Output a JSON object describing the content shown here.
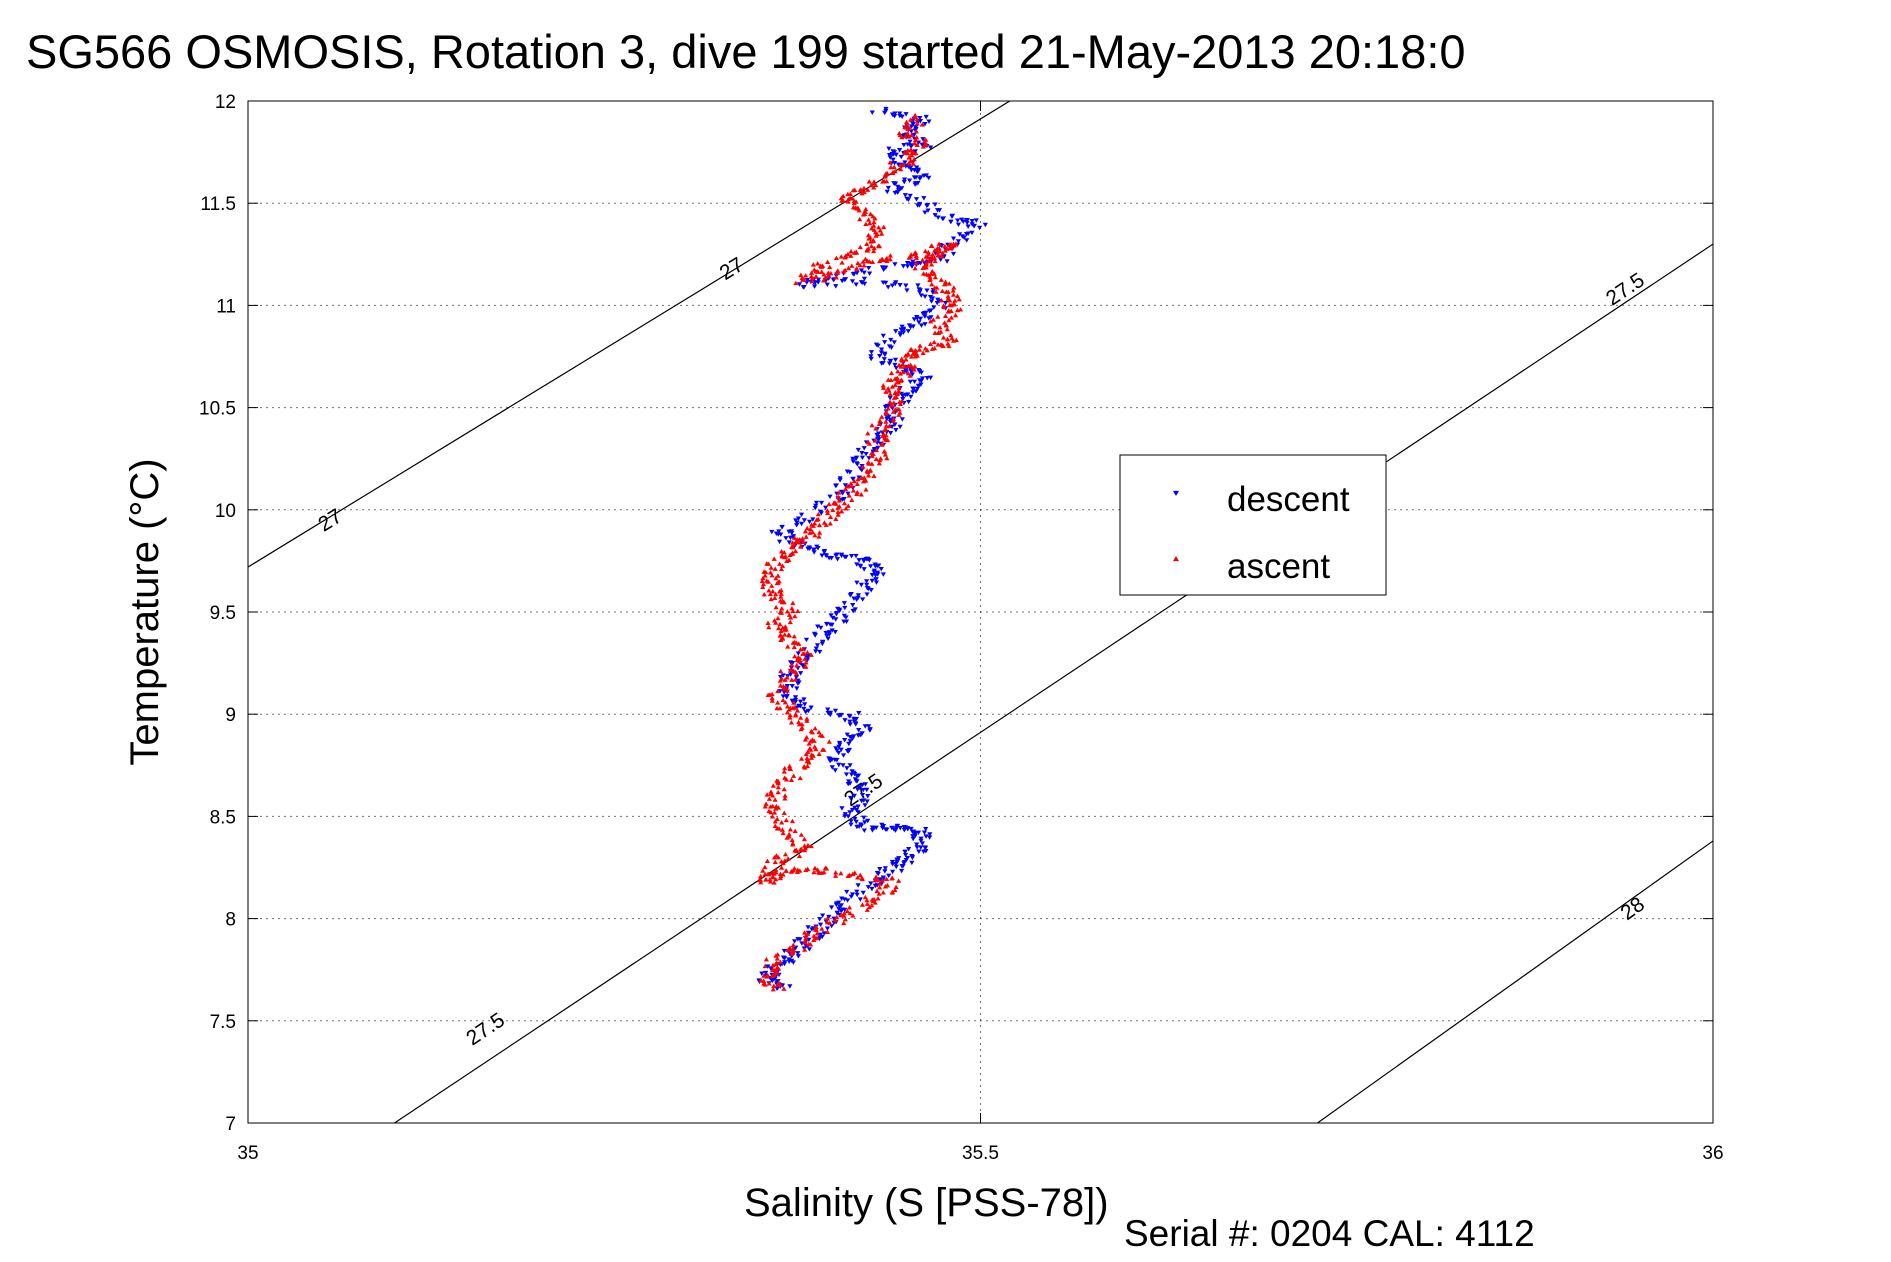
{
  "chart_data": {
    "type": "scatter",
    "title": "SG566 OSMOSIS, Rotation 3, dive 199 started 21-May-2013 20:18:0",
    "xlabel": "Salinity (S [PSS-78])",
    "ylabel": "Temperature (°C)",
    "xlim": [
      35,
      36
    ],
    "ylim": [
      7,
      12
    ],
    "xticks": [
      35,
      35.5,
      36
    ],
    "xtick_labels": [
      "35",
      "35.5",
      "36"
    ],
    "yticks": [
      7,
      7.5,
      8,
      8.5,
      9,
      9.5,
      10,
      10.5,
      11,
      11.5,
      12
    ],
    "ytick_labels": [
      "7",
      "7.5",
      "8",
      "8.5",
      "9",
      "9.5",
      "10",
      "10.5",
      "11",
      "11.5",
      "12"
    ],
    "grid": true,
    "legend_position": "right-center",
    "footer": "Serial #: 0204  CAL: 4112",
    "density_contours": [
      {
        "label": "27",
        "points": [
          [
            35.0,
            9.72
          ],
          [
            35.52,
            12.0
          ]
        ],
        "label_positions": [
          [
            35.056,
            9.95
          ],
          [
            35.33,
            11.18
          ]
        ]
      },
      {
        "label": "27.5",
        "points": [
          [
            35.1,
            7.0
          ],
          [
            36.0,
            11.3
          ]
        ],
        "label_positions": [
          [
            35.162,
            7.46
          ],
          [
            35.42,
            8.63
          ],
          [
            35.94,
            11.08
          ]
        ]
      },
      {
        "label": "28",
        "points": [
          [
            35.73,
            7.0
          ],
          [
            36.0,
            8.38
          ]
        ],
        "label_positions": [
          [
            35.945,
            8.05
          ]
        ]
      }
    ],
    "series": [
      {
        "name": "descent",
        "color": "#0000ff",
        "marker": "triangle-down",
        "path": [
          [
            35.43,
            11.95
          ],
          [
            35.46,
            11.92
          ],
          [
            35.45,
            11.85
          ],
          [
            35.46,
            11.78
          ],
          [
            35.44,
            11.75
          ],
          [
            35.45,
            11.68
          ],
          [
            35.46,
            11.62
          ],
          [
            35.44,
            11.58
          ],
          [
            35.46,
            11.5
          ],
          [
            35.48,
            11.42
          ],
          [
            35.5,
            11.4
          ],
          [
            35.48,
            11.3
          ],
          [
            35.47,
            11.22
          ],
          [
            35.45,
            11.2
          ],
          [
            35.4,
            11.15
          ],
          [
            35.38,
            11.1
          ],
          [
            35.42,
            11.12
          ],
          [
            35.46,
            11.08
          ],
          [
            35.47,
            11.0
          ],
          [
            35.46,
            10.92
          ],
          [
            35.44,
            10.85
          ],
          [
            35.43,
            10.75
          ],
          [
            35.45,
            10.7
          ],
          [
            35.46,
            10.65
          ],
          [
            35.45,
            10.58
          ],
          [
            35.44,
            10.5
          ],
          [
            35.44,
            10.42
          ],
          [
            35.43,
            10.34
          ],
          [
            35.42,
            10.26
          ],
          [
            35.41,
            10.15
          ],
          [
            35.4,
            10.05
          ],
          [
            35.38,
            9.95
          ],
          [
            35.36,
            9.88
          ],
          [
            35.38,
            9.82
          ],
          [
            35.4,
            9.78
          ],
          [
            35.42,
            9.76
          ],
          [
            35.43,
            9.7
          ],
          [
            35.42,
            9.62
          ],
          [
            35.41,
            9.52
          ],
          [
            35.4,
            9.45
          ],
          [
            35.39,
            9.38
          ],
          [
            35.38,
            9.28
          ],
          [
            35.37,
            9.18
          ],
          [
            35.37,
            9.1
          ],
          [
            35.38,
            9.03
          ],
          [
            35.41,
            9.0
          ],
          [
            35.42,
            8.93
          ],
          [
            35.41,
            8.85
          ],
          [
            35.4,
            8.78
          ],
          [
            35.41,
            8.7
          ],
          [
            35.42,
            8.62
          ],
          [
            35.41,
            8.52
          ],
          [
            35.42,
            8.45
          ],
          [
            35.44,
            8.44
          ],
          [
            35.46,
            8.43
          ],
          [
            35.46,
            8.36
          ],
          [
            35.45,
            8.3
          ],
          [
            35.44,
            8.25
          ],
          [
            35.43,
            8.18
          ],
          [
            35.41,
            8.1
          ],
          [
            35.4,
            8.02
          ],
          [
            35.39,
            7.95
          ],
          [
            35.38,
            7.88
          ],
          [
            35.37,
            7.82
          ],
          [
            35.36,
            7.76
          ],
          [
            35.355,
            7.7
          ],
          [
            35.365,
            7.66
          ]
        ]
      },
      {
        "name": "ascent",
        "color": "#ff0000",
        "marker": "triangle-up",
        "path": [
          [
            35.36,
            7.66
          ],
          [
            35.355,
            7.72
          ],
          [
            35.36,
            7.8
          ],
          [
            35.38,
            7.88
          ],
          [
            35.39,
            7.95
          ],
          [
            35.41,
            8.02
          ],
          [
            35.43,
            8.1
          ],
          [
            35.44,
            8.18
          ],
          [
            35.41,
            8.22
          ],
          [
            35.38,
            8.24
          ],
          [
            35.36,
            8.22
          ],
          [
            35.355,
            8.18
          ],
          [
            35.36,
            8.28
          ],
          [
            35.38,
            8.34
          ],
          [
            35.37,
            8.42
          ],
          [
            35.36,
            8.52
          ],
          [
            35.36,
            8.6
          ],
          [
            35.37,
            8.7
          ],
          [
            35.38,
            8.78
          ],
          [
            35.39,
            8.85
          ],
          [
            35.38,
            8.95
          ],
          [
            35.37,
            9.02
          ],
          [
            35.36,
            9.1
          ],
          [
            35.37,
            9.2
          ],
          [
            35.38,
            9.28
          ],
          [
            35.37,
            9.36
          ],
          [
            35.36,
            9.42
          ],
          [
            35.37,
            9.5
          ],
          [
            35.36,
            9.58
          ],
          [
            35.355,
            9.65
          ],
          [
            35.36,
            9.72
          ],
          [
            35.37,
            9.8
          ],
          [
            35.38,
            9.86
          ],
          [
            35.39,
            9.93
          ],
          [
            35.4,
            10.0
          ],
          [
            35.41,
            10.07
          ],
          [
            35.42,
            10.15
          ],
          [
            35.43,
            10.23
          ],
          [
            35.43,
            10.32
          ],
          [
            35.43,
            10.4
          ],
          [
            35.44,
            10.48
          ],
          [
            35.44,
            10.56
          ],
          [
            35.44,
            10.62
          ],
          [
            35.45,
            10.68
          ],
          [
            35.45,
            10.75
          ],
          [
            35.46,
            10.78
          ],
          [
            35.48,
            10.82
          ],
          [
            35.47,
            10.9
          ],
          [
            35.48,
            10.98
          ],
          [
            35.48,
            11.05
          ],
          [
            35.47,
            11.12
          ],
          [
            35.46,
            11.18
          ],
          [
            35.47,
            11.25
          ],
          [
            35.48,
            11.3
          ],
          [
            35.46,
            11.25
          ],
          [
            35.43,
            11.22
          ],
          [
            35.41,
            11.18
          ],
          [
            35.38,
            11.12
          ],
          [
            35.39,
            11.18
          ],
          [
            35.41,
            11.25
          ],
          [
            35.43,
            11.3
          ],
          [
            35.43,
            11.38
          ],
          [
            35.42,
            11.45
          ],
          [
            35.41,
            11.52
          ],
          [
            35.42,
            11.58
          ],
          [
            35.44,
            11.65
          ],
          [
            35.45,
            11.72
          ],
          [
            35.46,
            11.78
          ],
          [
            35.45,
            11.85
          ],
          [
            35.46,
            11.92
          ]
        ]
      }
    ]
  }
}
